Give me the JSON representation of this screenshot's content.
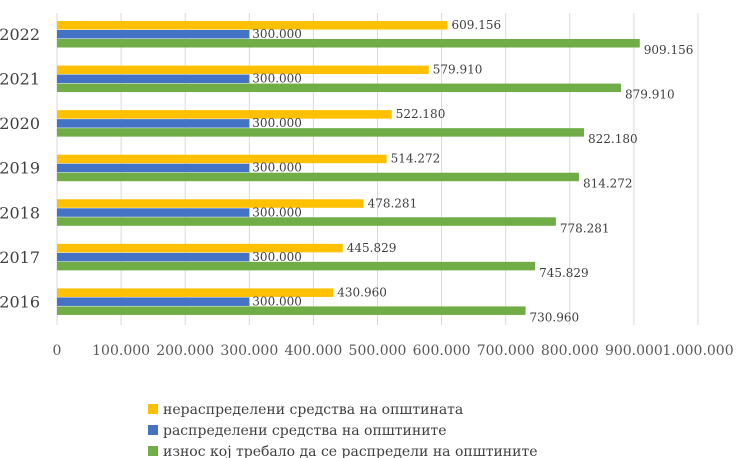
{
  "chart_data": {
    "type": "bar",
    "orientation": "horizontal",
    "title": "",
    "xlabel": "",
    "ylabel": "",
    "categories": [
      "2022",
      "2021",
      "2020",
      "2019",
      "2018",
      "2017",
      "2016"
    ],
    "series": [
      {
        "name": "нераспределени средства на општината",
        "color": "#FFC000",
        "values": [
          609156,
          579910,
          522180,
          514272,
          478281,
          445829,
          430960
        ],
        "labels": [
          "609.156",
          "579.910",
          "522.180",
          "514.272",
          "478.281",
          "445.829",
          "430.960"
        ]
      },
      {
        "name": "распределени средства на општините",
        "color": "#4472C4",
        "values": [
          300000,
          300000,
          300000,
          300000,
          300000,
          300000,
          300000
        ],
        "labels": [
          "300.000",
          "300.000",
          "300.000",
          "300.000",
          "300.000",
          "300.000",
          "300.000"
        ]
      },
      {
        "name": "износ кој требало да се распредели на општините",
        "color": "#70AD47",
        "values": [
          909156,
          879910,
          822180,
          814272,
          778281,
          745829,
          730960
        ],
        "labels": [
          "909.156",
          "879.910",
          "822.180",
          "814.272",
          "778.281",
          "745.829",
          "730.960"
        ]
      }
    ],
    "xlim": [
      0,
      1000000
    ],
    "xticks": [
      0,
      100000,
      200000,
      300000,
      400000,
      500000,
      600000,
      700000,
      800000,
      900000,
      1000000
    ],
    "xtick_labels": [
      "0",
      "100.000",
      "200.000",
      "300.000",
      "400.000",
      "500.000",
      "600.000",
      "700.000",
      "800.000",
      "900.000",
      "1.000.000"
    ],
    "grid": true,
    "legend_position": "bottom"
  }
}
